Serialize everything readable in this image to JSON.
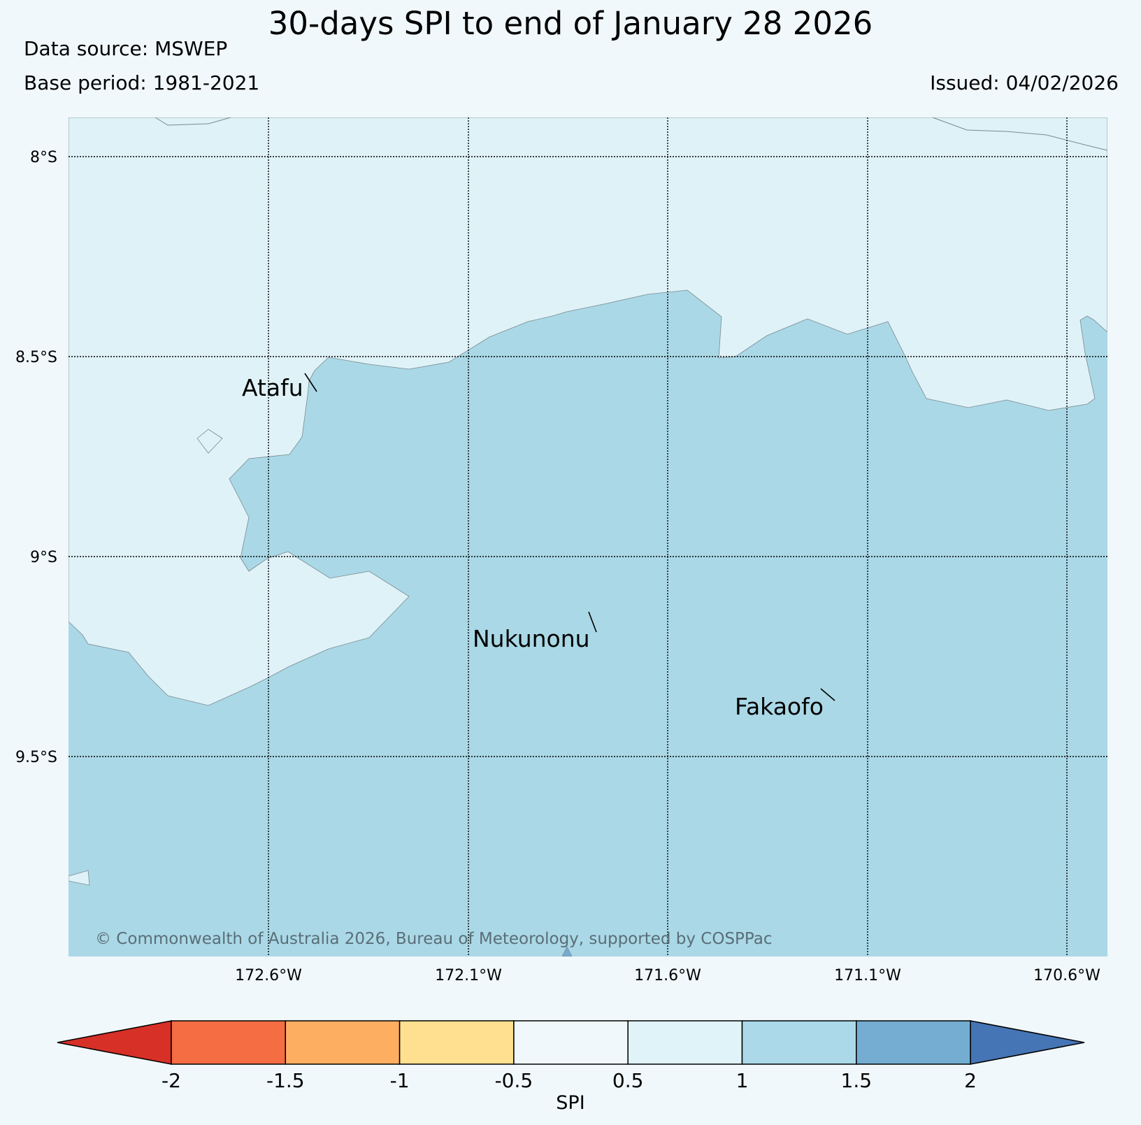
{
  "header": {
    "title": "30-days SPI to end of January 28 2026",
    "data_source": "Data source: MSWEP",
    "base_period": "Base period: 1981-2021",
    "issued": "Issued: 04/02/2026"
  },
  "map": {
    "lat_labels": [
      "8°S",
      "8.5°S",
      "9°S",
      "9.5°S"
    ],
    "lon_labels": [
      "172.6°W",
      "172.1°W",
      "171.6°W",
      "171.1°W",
      "170.6°W"
    ],
    "places": [
      "Atafu",
      "Nukunonu",
      "Fakaofo"
    ],
    "copyright": "© Commonwealth of Australia 2026, Bureau of Meteorology, supported by COSPPac",
    "colors": {
      "class_0_5_to_1": "#dff2f7",
      "class_1_to_1_5": "#aad8e6",
      "class_1_5_to_2": "#74abd0"
    }
  },
  "colorbar": {
    "title": "SPI",
    "ticks": [
      "-2",
      "-1.5",
      "-1",
      "-0.5",
      "0.5",
      "1",
      "1.5",
      "2"
    ],
    "colors": [
      "#d73027",
      "#f46d43",
      "#fdae61",
      "#fee090",
      "#f0f8fb",
      "#e0f3f8",
      "#abd9e9",
      "#74add1",
      "#4575b4"
    ]
  }
}
